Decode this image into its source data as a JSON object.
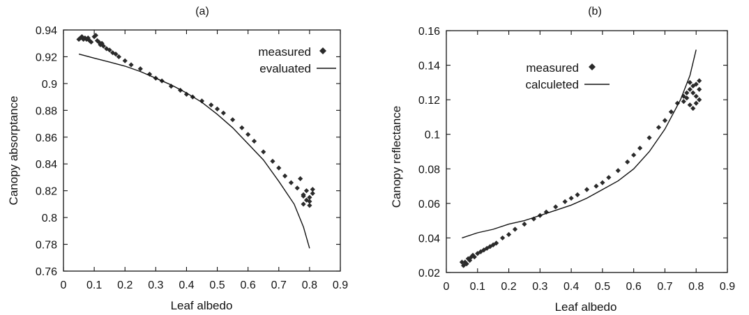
{
  "chart_data": [
    {
      "type": "scatter",
      "title": "(a)",
      "xlabel": "Leaf albedo",
      "ylabel": "Canopy absorptance",
      "xlim": [
        0,
        0.9
      ],
      "ylim": [
        0.76,
        0.94
      ],
      "xticks": [
        "0",
        "0.1",
        "0.2",
        "0.3",
        "0.4",
        "0.5",
        "0.6",
        "0.7",
        "0.8",
        "0.9"
      ],
      "yticks": [
        "0.76",
        "0.78",
        "0.8",
        "0.82",
        "0.84",
        "0.86",
        "0.88",
        "0.9",
        "0.92",
        "0.94"
      ],
      "legend_position": "top-right",
      "grid": false,
      "series": [
        {
          "name": "measured",
          "style": "diamond-markers",
          "x": [
            0.05,
            0.055,
            0.06,
            0.065,
            0.07,
            0.075,
            0.08,
            0.085,
            0.09,
            0.1,
            0.105,
            0.11,
            0.115,
            0.12,
            0.125,
            0.13,
            0.14,
            0.15,
            0.16,
            0.17,
            0.18,
            0.2,
            0.22,
            0.25,
            0.28,
            0.3,
            0.32,
            0.35,
            0.38,
            0.4,
            0.42,
            0.45,
            0.48,
            0.5,
            0.52,
            0.55,
            0.58,
            0.6,
            0.62,
            0.65,
            0.68,
            0.7,
            0.72,
            0.74,
            0.76,
            0.77,
            0.78,
            0.79,
            0.8,
            0.81,
            0.78,
            0.79,
            0.8,
            0.81,
            0.78,
            0.8
          ],
          "y": [
            0.933,
            0.934,
            0.935,
            0.933,
            0.934,
            0.933,
            0.934,
            0.932,
            0.931,
            0.935,
            0.936,
            0.932,
            0.931,
            0.929,
            0.93,
            0.928,
            0.926,
            0.925,
            0.923,
            0.922,
            0.92,
            0.917,
            0.914,
            0.911,
            0.907,
            0.904,
            0.902,
            0.898,
            0.895,
            0.892,
            0.89,
            0.887,
            0.884,
            0.881,
            0.878,
            0.873,
            0.867,
            0.862,
            0.857,
            0.849,
            0.842,
            0.837,
            0.831,
            0.826,
            0.822,
            0.829,
            0.816,
            0.82,
            0.815,
            0.821,
            0.81,
            0.813,
            0.812,
            0.818,
            0.817,
            0.809
          ]
        },
        {
          "name": "evaluated",
          "style": "line",
          "x": [
            0.05,
            0.1,
            0.15,
            0.2,
            0.25,
            0.3,
            0.35,
            0.4,
            0.45,
            0.5,
            0.55,
            0.6,
            0.65,
            0.7,
            0.75,
            0.78,
            0.8
          ],
          "y": [
            0.922,
            0.919,
            0.916,
            0.913,
            0.909,
            0.904,
            0.899,
            0.893,
            0.886,
            0.877,
            0.867,
            0.855,
            0.843,
            0.827,
            0.81,
            0.793,
            0.777
          ]
        }
      ]
    },
    {
      "type": "scatter",
      "title": "(b)",
      "xlabel": "Leaf albedo",
      "ylabel": "Canopy reflectance",
      "xlim": [
        0,
        0.9
      ],
      "ylim": [
        0.02,
        0.16
      ],
      "xticks": [
        "0",
        "0.1",
        "0.2",
        "0.3",
        "0.4",
        "0.5",
        "0.6",
        "0.7",
        "0.8",
        "0.9"
      ],
      "yticks": [
        "0.02",
        "0.04",
        "0.06",
        "0.08",
        "0.1",
        "0.12",
        "0.14",
        "0.16"
      ],
      "legend_position": "top-left",
      "grid": false,
      "series": [
        {
          "name": "measured",
          "style": "diamond-markers",
          "x": [
            0.05,
            0.055,
            0.06,
            0.065,
            0.07,
            0.075,
            0.08,
            0.085,
            0.09,
            0.1,
            0.11,
            0.12,
            0.13,
            0.14,
            0.15,
            0.16,
            0.18,
            0.2,
            0.22,
            0.25,
            0.28,
            0.3,
            0.32,
            0.35,
            0.38,
            0.4,
            0.42,
            0.45,
            0.48,
            0.5,
            0.52,
            0.55,
            0.58,
            0.6,
            0.62,
            0.65,
            0.68,
            0.7,
            0.72,
            0.74,
            0.76,
            0.77,
            0.78,
            0.79,
            0.8,
            0.81,
            0.76,
            0.77,
            0.78,
            0.79,
            0.8,
            0.81,
            0.78,
            0.8,
            0.81,
            0.79
          ],
          "y": [
            0.026,
            0.024,
            0.026,
            0.025,
            0.028,
            0.027,
            0.029,
            0.03,
            0.029,
            0.031,
            0.032,
            0.033,
            0.034,
            0.035,
            0.036,
            0.037,
            0.04,
            0.042,
            0.045,
            0.048,
            0.051,
            0.053,
            0.055,
            0.058,
            0.061,
            0.063,
            0.065,
            0.068,
            0.07,
            0.072,
            0.075,
            0.079,
            0.084,
            0.088,
            0.092,
            0.098,
            0.104,
            0.108,
            0.113,
            0.118,
            0.122,
            0.124,
            0.126,
            0.128,
            0.129,
            0.131,
            0.119,
            0.121,
            0.117,
            0.115,
            0.122,
            0.126,
            0.13,
            0.118,
            0.12,
            0.124
          ]
        },
        {
          "name": "calculeted",
          "style": "line",
          "x": [
            0.05,
            0.1,
            0.15,
            0.2,
            0.25,
            0.3,
            0.35,
            0.4,
            0.45,
            0.5,
            0.55,
            0.6,
            0.65,
            0.7,
            0.75,
            0.78,
            0.8
          ],
          "y": [
            0.04,
            0.043,
            0.045,
            0.048,
            0.05,
            0.053,
            0.056,
            0.059,
            0.063,
            0.068,
            0.073,
            0.08,
            0.09,
            0.103,
            0.12,
            0.134,
            0.149
          ]
        }
      ]
    }
  ]
}
